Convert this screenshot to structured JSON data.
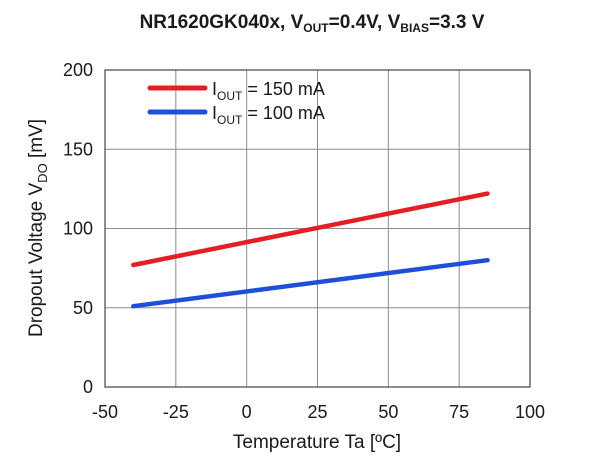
{
  "chart_data": {
    "type": "line",
    "title": {
      "part1": "NR1620GK040x, V",
      "part1_sub": "OUT",
      "part2": "=0.4V, V",
      "part2_sub": "BIAS",
      "part3": "=3.3 V"
    },
    "xlabel": "Temperature Ta [ºC]",
    "ylabel": {
      "main": "Dropout Voltage V",
      "sub": "DO",
      "unit": " [mV]"
    },
    "xlim": [
      -50,
      100
    ],
    "ylim": [
      0,
      200
    ],
    "x_ticks": [
      -50,
      -25,
      0,
      25,
      50,
      75,
      100
    ],
    "y_ticks": [
      0,
      50,
      100,
      150,
      200
    ],
    "grid": true,
    "legend_position": "top-left",
    "series": [
      {
        "name_main": "I",
        "name_sub": "OUT",
        "name_rest": " = 150 mA",
        "color": "#e31e24",
        "x": [
          -40,
          85
        ],
        "y": [
          77,
          122
        ]
      },
      {
        "name_main": "I",
        "name_sub": "OUT",
        "name_rest": " = 100 mA",
        "color": "#1f4fd8",
        "x": [
          -40,
          85
        ],
        "y": [
          51,
          80
        ]
      }
    ]
  }
}
